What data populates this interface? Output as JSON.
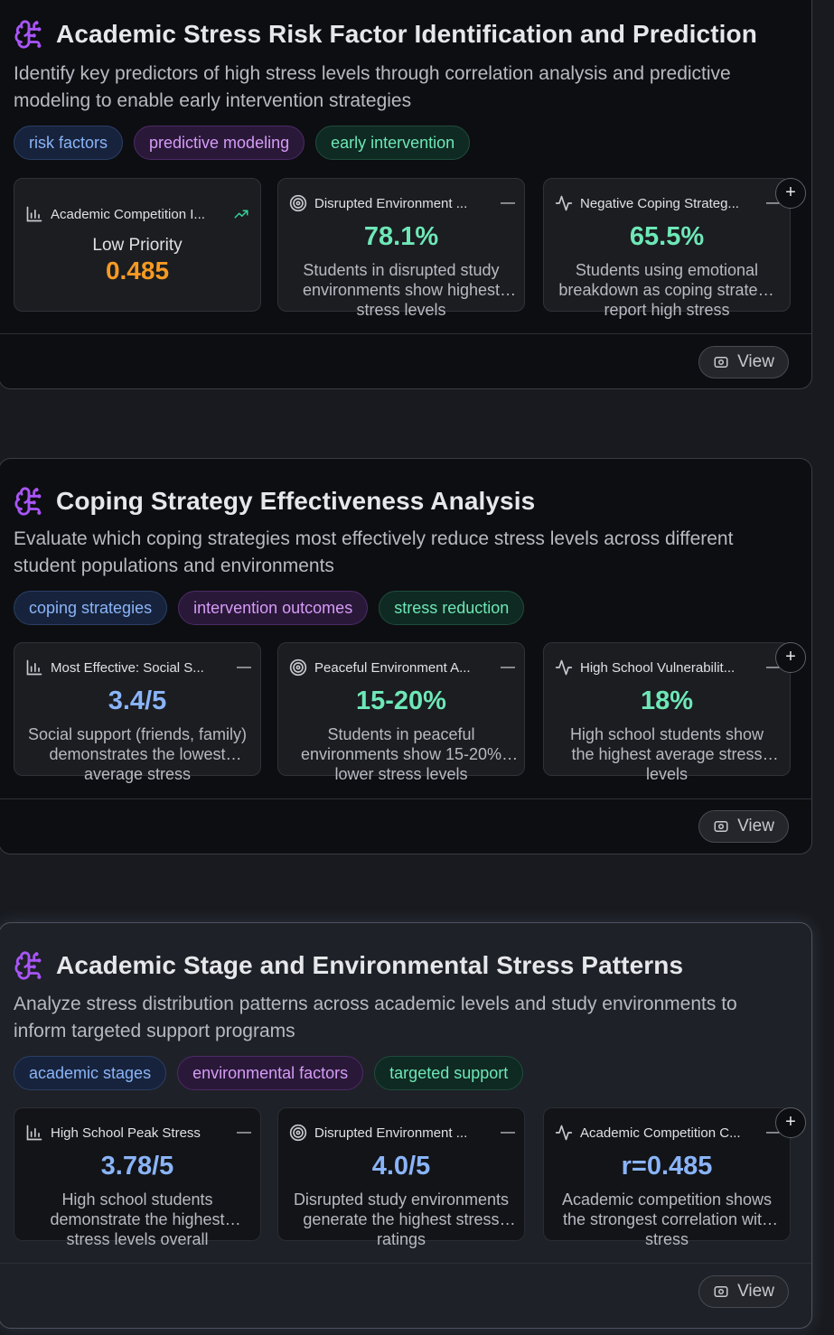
{
  "insights": [
    {
      "title": "Academic Stress Risk Factor Identification and Prediction",
      "description": "Identify key predictors of high stress levels through correlation analysis and predictive modeling to enable early intervention strategies",
      "tags": [
        "risk factors",
        "predictive modeling",
        "early intervention"
      ],
      "metrics": [
        {
          "icon": "bar-chart-icon",
          "label": "Academic Competition I...",
          "priority": "Low Priority",
          "score": "0.485"
        },
        {
          "icon": "target-icon",
          "label": "Disrupted Environment ...",
          "value": "78.1%",
          "description": "Students in disrupted study environments show highest stress levels"
        },
        {
          "icon": "activity-icon",
          "label": "Negative Coping Strateg...",
          "value": "65.5%",
          "description": "Students using emotional breakdown as coping strategy report high stress"
        }
      ],
      "view_label": "View"
    },
    {
      "title": "Coping Strategy Effectiveness Analysis",
      "description": "Evaluate which coping strategies most effectively reduce stress levels across different student populations and environments",
      "tags": [
        "coping strategies",
        "intervention outcomes",
        "stress reduction"
      ],
      "metrics": [
        {
          "icon": "bar-chart-icon",
          "label": "Most Effective: Social S...",
          "value": "3.4/5",
          "description": "Social support (friends, family) demonstrates the lowest average stress"
        },
        {
          "icon": "target-icon",
          "label": "Peaceful Environment A...",
          "value": "15-20%",
          "description": "Students in peaceful environments show 15-20% lower stress levels"
        },
        {
          "icon": "activity-icon",
          "label": "High School Vulnerabilit...",
          "value": "18%",
          "description": "High school students show the highest average stress levels"
        }
      ],
      "view_label": "View"
    },
    {
      "title": "Academic Stage and Environmental Stress Patterns",
      "description": "Analyze stress distribution patterns across academic levels and study environments to inform targeted support programs",
      "tags": [
        "academic stages",
        "environmental factors",
        "targeted support"
      ],
      "metrics": [
        {
          "icon": "bar-chart-icon",
          "label": "High School Peak Stress",
          "value": "3.78/5",
          "description": "High school students demonstrate the highest stress levels overall"
        },
        {
          "icon": "target-icon",
          "label": "Disrupted Environment ...",
          "value": "4.0/5",
          "description": "Disrupted study environments generate the highest stress ratings"
        },
        {
          "icon": "activity-icon",
          "label": "Academic Competition C...",
          "value": "r=0.485",
          "description": "Academic competition shows the strongest correlation with stress"
        }
      ],
      "view_label": "View"
    }
  ],
  "colors": {
    "accent_purple": "#a855f7",
    "green_value": "#6ee7b7",
    "blue_value": "#8ab4f8",
    "orange_score": "#f59a23",
    "trend_green": "#34d399"
  }
}
